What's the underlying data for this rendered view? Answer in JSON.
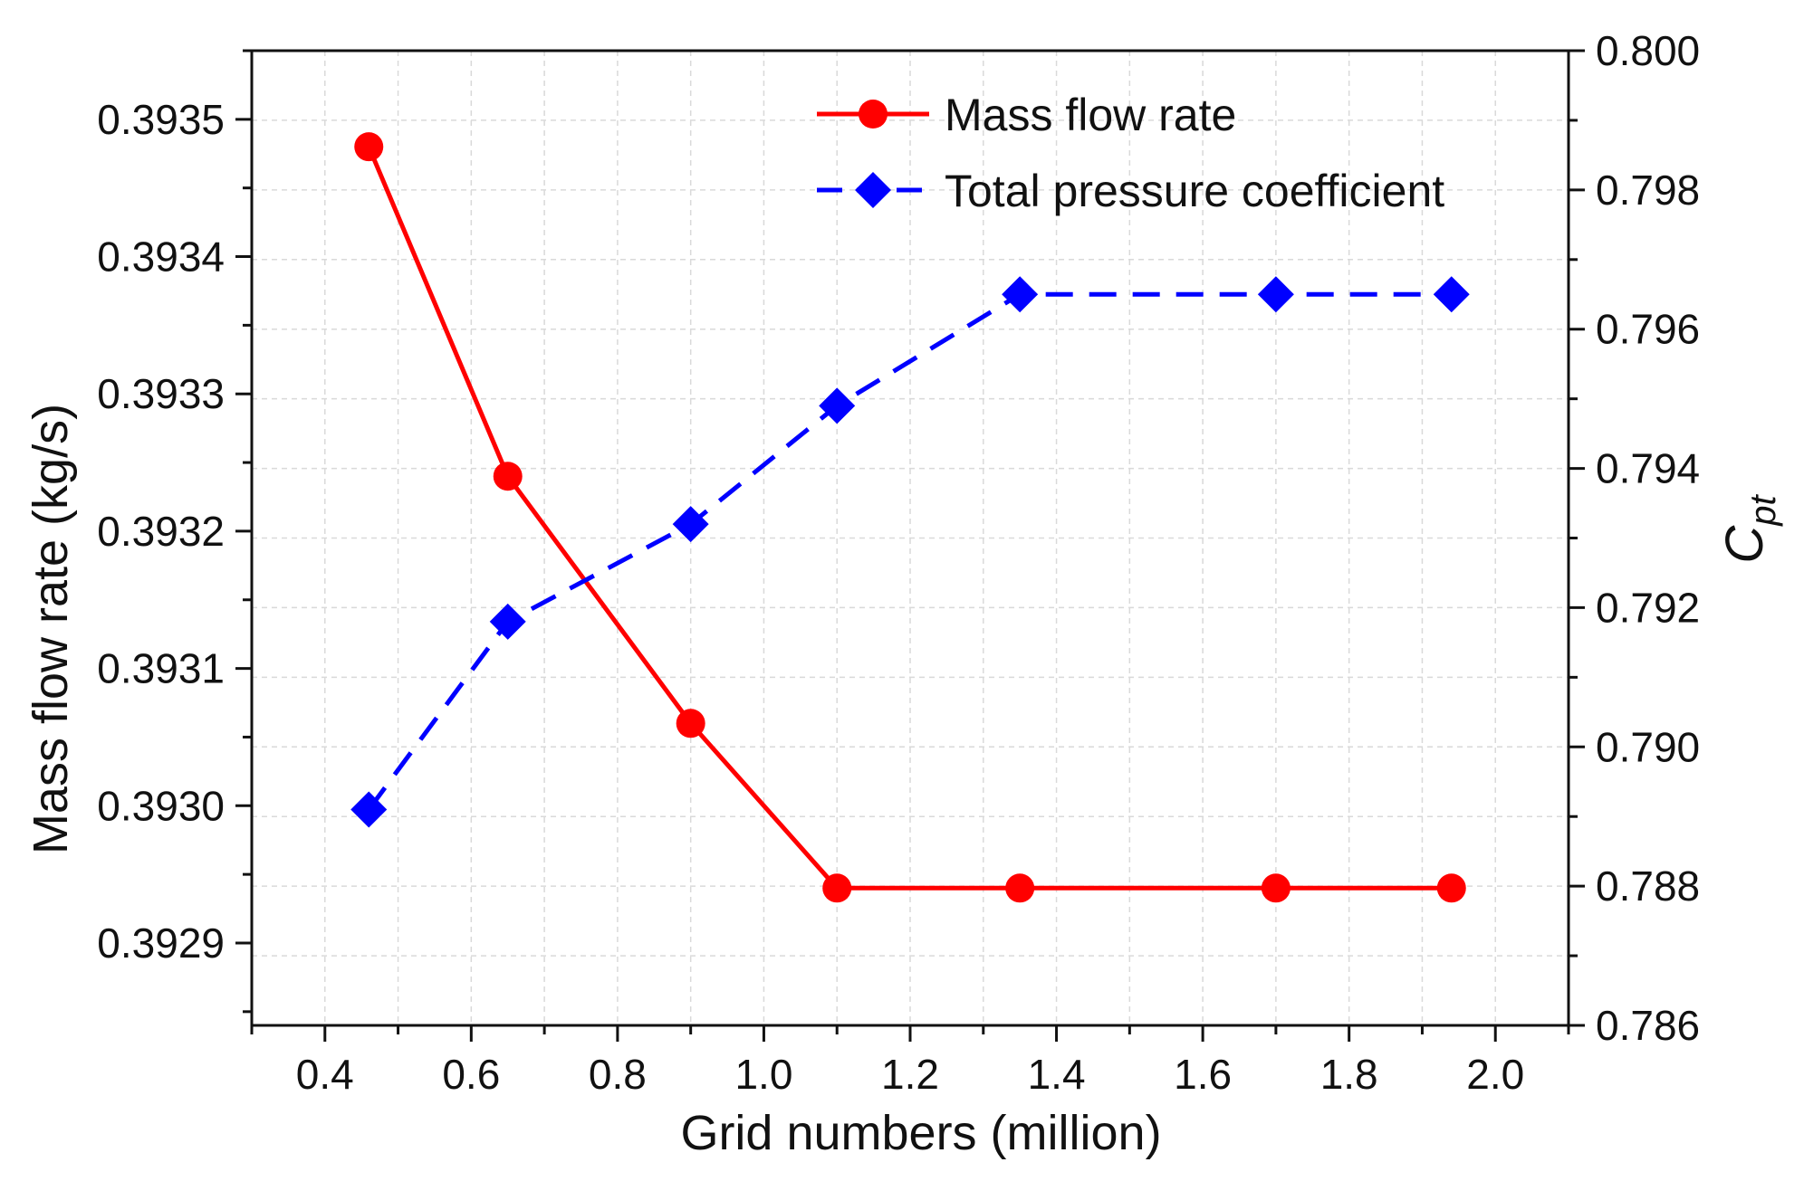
{
  "chart_data": {
    "type": "line",
    "xlabel": "Grid numbers (million)",
    "ylabel": "Mass flow rate (kg/s)",
    "y2label_main": "C",
    "y2label_sub": "pt",
    "xlim": [
      0.3,
      2.1
    ],
    "ylim": [
      0.39284,
      0.39355
    ],
    "y2lim": [
      0.786,
      0.8
    ],
    "xticks": [
      "0.4",
      "0.6",
      "0.8",
      "1.0",
      "1.2",
      "1.4",
      "1.6",
      "1.8",
      "2.0"
    ],
    "yticks": [
      "0.3929",
      "0.3930",
      "0.3931",
      "0.3932",
      "0.3933",
      "0.3934",
      "0.3935"
    ],
    "y2ticks": [
      "0.786",
      "0.788",
      "0.790",
      "0.792",
      "0.794",
      "0.796",
      "0.798",
      "0.800"
    ],
    "grid": true,
    "legend_position": "top-right",
    "series": [
      {
        "name": "Mass flow rate",
        "axis": "left",
        "color": "#ff0000",
        "marker": "circle",
        "linestyle": "solid",
        "x": [
          0.46,
          0.65,
          0.9,
          1.1,
          1.35,
          1.7,
          1.94
        ],
        "values": [
          0.39348,
          0.39324,
          0.39306,
          0.39294,
          0.39294,
          0.39294,
          0.39294
        ]
      },
      {
        "name": "Total pressure coefficient",
        "axis": "right",
        "color": "#0000ff",
        "marker": "diamond",
        "linestyle": "dashed",
        "x": [
          0.46,
          0.65,
          0.9,
          1.1,
          1.35,
          1.7,
          1.94
        ],
        "values": [
          0.7891,
          0.7918,
          0.7932,
          0.7949,
          0.7965,
          0.7965,
          0.7965
        ]
      }
    ]
  }
}
